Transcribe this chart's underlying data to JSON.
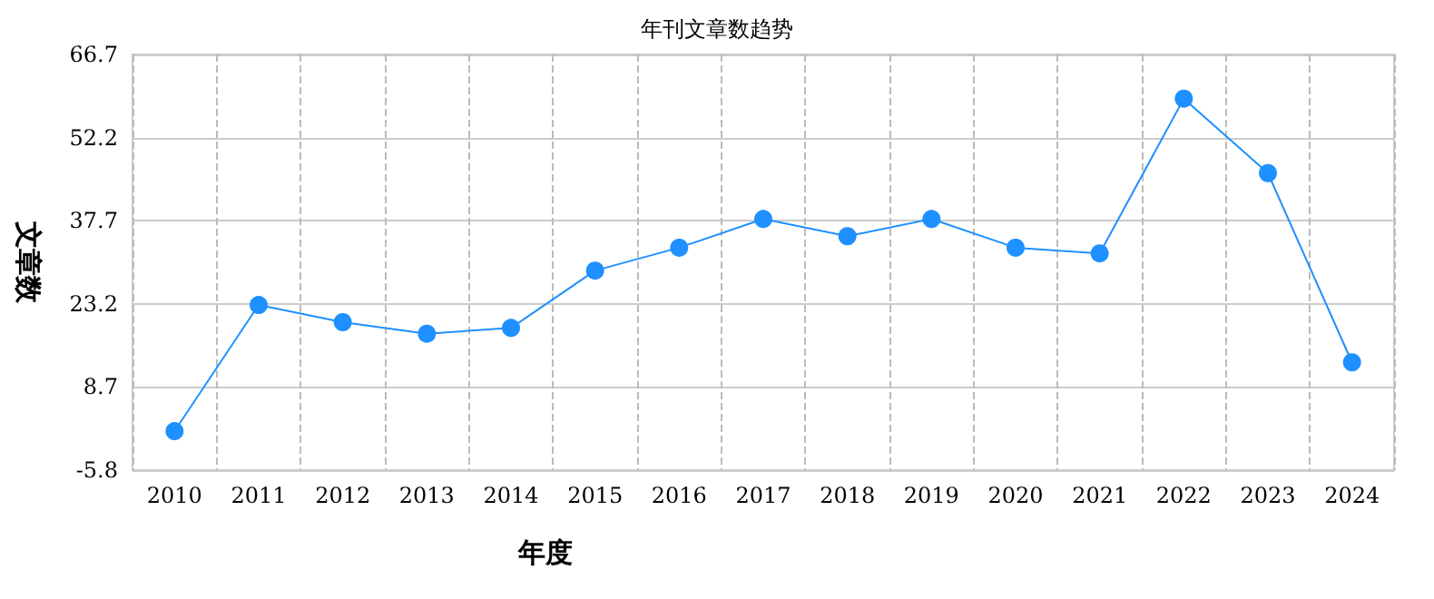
{
  "chart_data": {
    "type": "line",
    "title": "年刊文章数趋势",
    "xlabel": "年度",
    "ylabel": "文章数",
    "categories": [
      "2010",
      "2011",
      "2012",
      "2013",
      "2014",
      "2015",
      "2016",
      "2017",
      "2018",
      "2019",
      "2020",
      "2021",
      "2022",
      "2023",
      "2024"
    ],
    "series": [
      {
        "color": "#1e90ff",
        "values": [
          1,
          23,
          20,
          18,
          19,
          29,
          33,
          38,
          35,
          38,
          33,
          32,
          59,
          46,
          13
        ]
      }
    ],
    "ylim": [
      -5.8,
      66.7
    ],
    "yticks": [
      -5.8,
      8.7,
      23.2,
      37.7,
      52.2,
      66.7
    ],
    "grid": true,
    "marker": "circle",
    "line_style": "solid"
  }
}
